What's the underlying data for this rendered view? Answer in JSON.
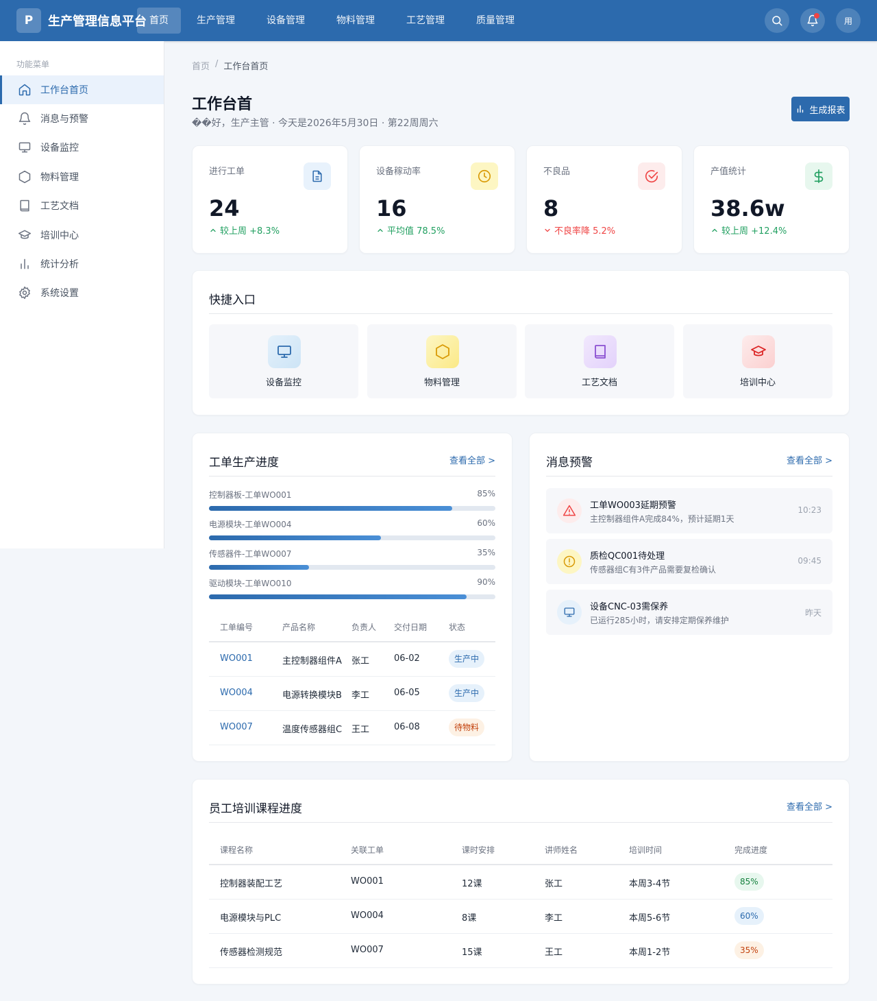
{
  "header": {
    "logo": "P",
    "app_title": "生产管理信息平台",
    "nav": [
      "首页",
      "生产管理",
      "设备管理",
      "物料管理",
      "工艺管理",
      "质量管理"
    ],
    "user_label": "用"
  },
  "sidebar": {
    "heading": "功能菜单",
    "items": [
      "工作台首页",
      "消息与预警",
      "设备监控",
      "物料管理",
      "工艺文档",
      "培训中心",
      "统计分析",
      "系统设置"
    ]
  },
  "breadcrumb": {
    "root": "首页",
    "current": "工作台首页"
  },
  "page": {
    "title": "工作台首",
    "subtitle": "��好，生产主管 · 今天是2026年5月30日 · 第22周周六",
    "report_button": "生成报表"
  },
  "stats": [
    {
      "label": "进行工单",
      "value": "24",
      "trend": "较上周 +8.3%",
      "direction": "up"
    },
    {
      "label": "设备稼动率",
      "value": "16",
      "trend": "平均值 78.5%",
      "direction": "up"
    },
    {
      "label": "不良品",
      "value": "8",
      "trend": "不良率降 5.2%",
      "direction": "down"
    },
    {
      "label": "产值统计",
      "value": "38.6w",
      "trend": "较上周 +12.4%",
      "direction": "up"
    }
  ],
  "quick": {
    "title": "快捷入口",
    "items": [
      "设备监控",
      "物料管理",
      "工艺文档",
      "培训中心"
    ]
  },
  "progress": {
    "title": "工单生产进度",
    "more": "查看全部 >",
    "items": [
      {
        "label": "控制器板-工单WO001",
        "pct": "85%",
        "value": 0.85
      },
      {
        "label": "电源模块-工单WO004",
        "pct": "60%",
        "value": 0.6
      },
      {
        "label": "传感器件-工单WO007",
        "pct": "35%",
        "value": 0.35
      },
      {
        "label": "驱动模块-工单WO010",
        "pct": "90%",
        "value": 0.9
      }
    ],
    "table": {
      "headers": [
        "工单编号",
        "产品名称",
        "负责人",
        "交付日期",
        "状态"
      ],
      "rows": [
        [
          "WO001",
          "主控制器组件A",
          "张工",
          "06-02",
          "生产中"
        ],
        [
          "WO004",
          "电源转换模块B",
          "李工",
          "06-05",
          "生产中"
        ],
        [
          "WO007",
          "温度传感器组C",
          "王工",
          "06-08",
          "待物料"
        ]
      ]
    }
  },
  "messages": {
    "title": "消息预警",
    "more": "查看全部 >",
    "items": [
      {
        "title": "工单WO003延期预警",
        "desc": "主控制器组件A完成84%，预计延期1天",
        "time": "10:23"
      },
      {
        "title": "质检QC001待处理",
        "desc": "传感器组C有3件产品需要复检确认",
        "time": "09:45"
      },
      {
        "title": "设备CNC-03需保养",
        "desc": "已运行285小时，请安排定期保养维护",
        "time": "昨天"
      }
    ]
  },
  "training": {
    "title": "员工培训课程进度",
    "more": "查看全部 >",
    "headers": [
      "课程名称",
      "关联工单",
      "课时安排",
      "讲师姓名",
      "培训时间",
      "完成进度"
    ],
    "rows": [
      [
        "控制器装配工艺",
        "WO001",
        "12课",
        "张工",
        "本周3-4节",
        "85%"
      ],
      [
        "电源模块与PLC",
        "WO004",
        "8课",
        "李工",
        "本周5-6节",
        "60%"
      ],
      [
        "传感器检测规范",
        "WO007",
        "15课",
        "王工",
        "本周1-2节",
        "35%"
      ]
    ]
  },
  "colors": {
    "primary": "#2c6aad",
    "success": "#22a061",
    "danger": "#ef4444",
    "warning": "#d99a06"
  }
}
